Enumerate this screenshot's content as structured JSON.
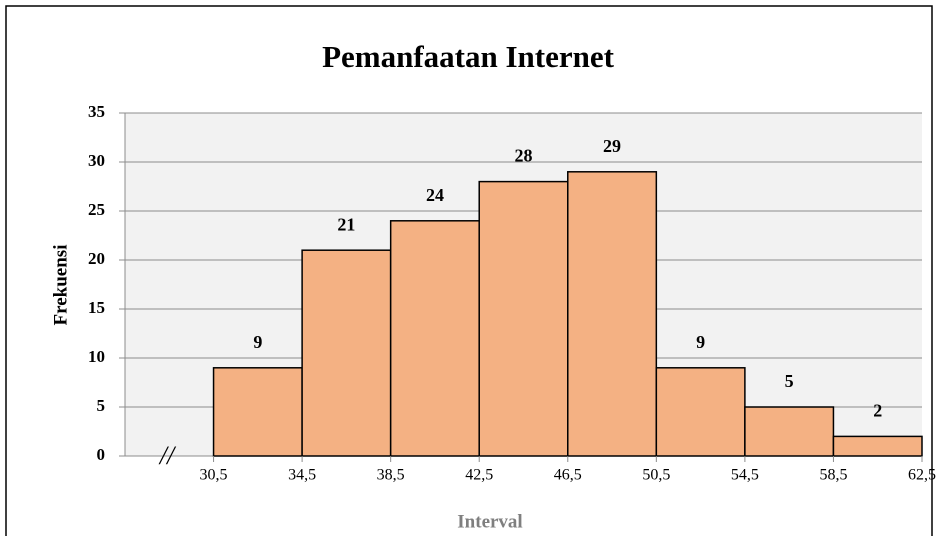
{
  "chart_data": {
    "type": "histogram",
    "title": "Pemanfaatan Internet",
    "xlabel": "Interval",
    "ylabel": "Frekuensi",
    "bins": [
      30.5,
      34.5,
      38.5,
      42.5,
      46.5,
      50.5,
      54.5,
      58.5,
      62.5
    ],
    "values": [
      9,
      21,
      24,
      28,
      29,
      9,
      5,
      2
    ],
    "color": "#f4b183",
    "xlim": [
      26.5,
      62.5
    ],
    "xticks": [
      {
        "value": 30.5,
        "label": "30,5"
      },
      {
        "value": 34.5,
        "label": "34,5"
      },
      {
        "value": 38.5,
        "label": "38,5"
      },
      {
        "value": 42.5,
        "label": "42,5"
      },
      {
        "value": 46.5,
        "label": "46,5"
      },
      {
        "value": 50.5,
        "label": "50,5"
      },
      {
        "value": 54.5,
        "label": "54,5"
      },
      {
        "value": 58.5,
        "label": "58,5"
      },
      {
        "value": 62.5,
        "label": "62,5"
      }
    ],
    "ylim": [
      0,
      35
    ],
    "yticks": [
      0,
      5,
      10,
      15,
      20,
      25,
      30,
      35
    ],
    "grid": true,
    "axis_break": "//"
  }
}
